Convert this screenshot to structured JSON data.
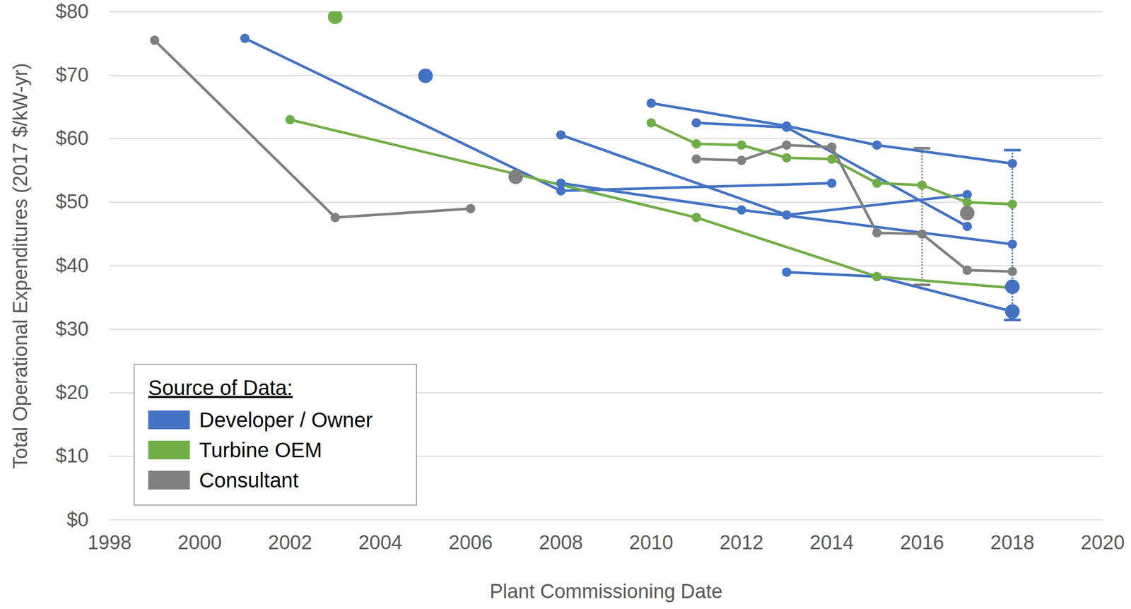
{
  "chart_data": {
    "type": "line",
    "x_label": "Plant Commissioning Date",
    "y_label": "Total Operational Expenditures (2017 $/kW-yr)",
    "xlim": [
      1998,
      2020
    ],
    "xticks": [
      1998,
      2000,
      2002,
      2004,
      2006,
      2008,
      2010,
      2012,
      2014,
      2016,
      2018,
      2020
    ],
    "ylim": [
      0,
      80
    ],
    "yticks": [
      {
        "value": 0,
        "label": "$0"
      },
      {
        "value": 10,
        "label": "$10"
      },
      {
        "value": 20,
        "label": "$20"
      },
      {
        "value": 30,
        "label": "$30"
      },
      {
        "value": 40,
        "label": "$40"
      },
      {
        "value": 50,
        "label": "$50"
      },
      {
        "value": 60,
        "label": "$60"
      },
      {
        "value": 70,
        "label": "$70"
      },
      {
        "value": 80,
        "label": "$80"
      }
    ],
    "grid": "y",
    "legend": "bottom-left",
    "legend_title": "Source of Data:",
    "marker": "circle",
    "series": [
      {
        "name": "Developer / Owner",
        "color": "#4472c4",
        "lines": [
          {
            "x": [
              2001,
              2008,
              2014
            ],
            "values": [
              75.8,
              51.8,
              53
            ]
          },
          {
            "x": [
              2008,
              2012,
              2018
            ],
            "values": [
              53,
              48.8,
              43.4
            ]
          },
          {
            "x": [
              2008,
              2013,
              2017
            ],
            "values": [
              60.6,
              48,
              51.2
            ]
          },
          {
            "x": [
              2010,
              2013,
              2015,
              2018
            ],
            "values": [
              65.6,
              62,
              59,
              56.1
            ]
          },
          {
            "x": [
              2011,
              2013,
              2017
            ],
            "values": [
              62.5,
              61.8,
              46.2
            ]
          },
          {
            "x": [
              2013,
              2015,
              2018
            ],
            "values": [
              39,
              38.3,
              32.8
            ]
          }
        ],
        "points": {
          "x": [
            2005,
            2018,
            2018
          ],
          "values": [
            69.9,
            36.7,
            32.8
          ]
        },
        "error_bars": [
          {
            "x": 2018,
            "low": 31.5,
            "high": 58.2
          }
        ]
      },
      {
        "name": "Turbine OEM",
        "color": "#70ad47",
        "lines": [
          {
            "x": [
              2002,
              2011,
              2015,
              2018
            ],
            "values": [
              63,
              47.6,
              38.3,
              36.5
            ]
          },
          {
            "x": [
              2010,
              2011,
              2012,
              2013,
              2014,
              2015,
              2016,
              2017,
              2018
            ],
            "values": [
              62.5,
              59.2,
              59,
              57,
              56.8,
              53,
              52.7,
              50,
              49.7
            ]
          }
        ],
        "points": {
          "x": [
            2003
          ],
          "values": [
            79.2
          ]
        },
        "error_bars": []
      },
      {
        "name": "Consultant",
        "color": "#808080",
        "lines": [
          {
            "x": [
              1999,
              2003,
              2006
            ],
            "values": [
              75.5,
              47.6,
              49
            ]
          },
          {
            "x": [
              2011,
              2012,
              2013,
              2014,
              2015,
              2016,
              2017,
              2018
            ],
            "values": [
              56.8,
              56.6,
              59,
              58.7,
              45.2,
              45,
              39.3,
              39.1
            ]
          }
        ],
        "points": {
          "x": [
            2007,
            2017
          ],
          "values": [
            54,
            48.3
          ]
        },
        "error_bars": [
          {
            "x": 2016,
            "low": 37,
            "high": 58.5
          }
        ]
      }
    ]
  }
}
